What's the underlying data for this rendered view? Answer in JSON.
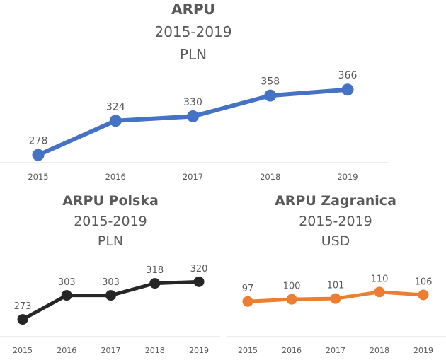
{
  "chart_data": [
    {
      "id": "main",
      "type": "line",
      "title": "ARPU",
      "subtitle_lines": [
        "2015-2019",
        "PLN"
      ],
      "categories": [
        "2015",
        "2016",
        "2017",
        "2018",
        "2019"
      ],
      "series": [
        {
          "name": "ARPU",
          "values": [
            278,
            324,
            330,
            358,
            366
          ]
        }
      ],
      "data_labels": [
        "278",
        "324",
        "330",
        "358",
        "366"
      ],
      "color": "#4472c4",
      "ylim": [
        220,
        420
      ],
      "xlabel": "",
      "ylabel": "",
      "grid": false
    },
    {
      "id": "pl",
      "type": "line",
      "title": "ARPU Polska",
      "subtitle_lines": [
        "2015-2019",
        "PLN"
      ],
      "categories": [
        "2015",
        "2016",
        "2017",
        "2018",
        "2019"
      ],
      "series": [
        {
          "name": "ARPU Polska",
          "values": [
            273,
            303,
            303,
            318,
            320
          ]
        }
      ],
      "data_labels": [
        "273",
        "303",
        "303",
        "318",
        "320"
      ],
      "color": "#262626",
      "ylim": [
        240,
        345
      ],
      "xlabel": "",
      "ylabel": "",
      "grid": false
    },
    {
      "id": "za",
      "type": "line",
      "title": "ARPU Zagranica",
      "subtitle_lines": [
        "2015-2019",
        "USD"
      ],
      "categories": [
        "2015",
        "2016",
        "2017",
        "2018",
        "2019"
      ],
      "series": [
        {
          "name": "ARPU Zagranica",
          "values": [
            97,
            100,
            101,
            110,
            106
          ]
        }
      ],
      "data_labels": [
        "97",
        "100",
        "101",
        "110",
        "106"
      ],
      "color": "#ed7d31",
      "ylim": [
        50,
        160
      ],
      "xlabel": "",
      "ylabel": "",
      "grid": false
    }
  ]
}
